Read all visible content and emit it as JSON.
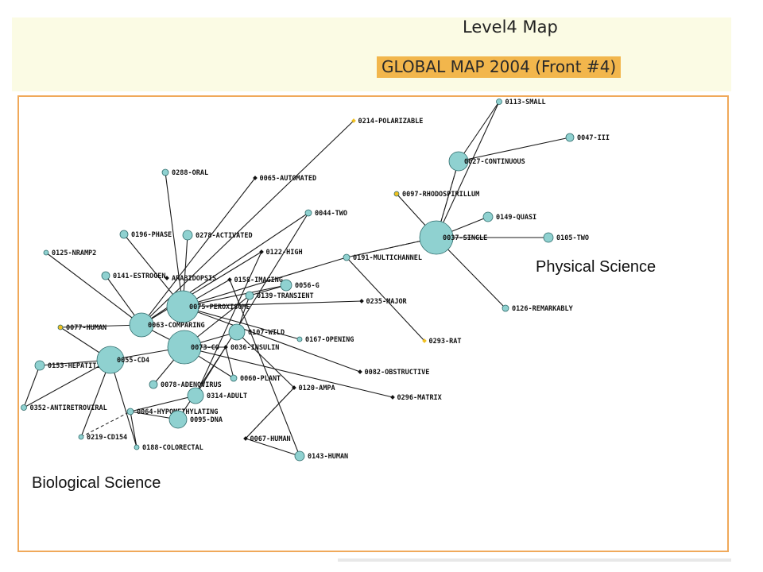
{
  "header": {
    "map_level": "Level4 Map",
    "map_title": "GLOBAL MAP 2004 (Front #4)"
  },
  "regions": {
    "physical": "Physical Science",
    "biological": "Biological Science"
  },
  "colors": {
    "node_fill": "#8fd1d0",
    "node_stroke": "#2f6b6b",
    "highlight_node": "#f0c020",
    "frame": "#f0a95a",
    "title_bg": "#f2b64c",
    "banner_bg": "#fbfbe4"
  },
  "nodes": [
    {
      "id": "n0113",
      "label": "0113-SMALL"
    },
    {
      "id": "n0047",
      "label": "0047-III"
    },
    {
      "id": "n0027",
      "label": "0027-CONTINUOUS"
    },
    {
      "id": "n0214",
      "label": "0214-POLARIZABLE"
    },
    {
      "id": "n0097",
      "label": "0097-RHODOSPIRILLUM"
    },
    {
      "id": "n0149",
      "label": "0149-QUASI"
    },
    {
      "id": "n0037",
      "label": "0037-SINGLE"
    },
    {
      "id": "n0105",
      "label": "0105-TWO"
    },
    {
      "id": "n0288",
      "label": "0288-ORAL"
    },
    {
      "id": "n0065",
      "label": "0065-AUTOMATED"
    },
    {
      "id": "n0044",
      "label": "0044-TWO"
    },
    {
      "id": "n0196",
      "label": "0196-PHASE"
    },
    {
      "id": "n0278",
      "label": "0278-ACTIVATED"
    },
    {
      "id": "n0125",
      "label": "0125-NRAMP2"
    },
    {
      "id": "n0122",
      "label": "0122-HIGH"
    },
    {
      "id": "n0191",
      "label": "0191-MULTICHANNEL"
    },
    {
      "id": "n0141",
      "label": "0141-ESTROGEN"
    },
    {
      "id": "nArab",
      "label": "ARABIDOPSIS"
    },
    {
      "id": "n0158",
      "label": "0158-IMAGING"
    },
    {
      "id": "n0056",
      "label": "0056-G"
    },
    {
      "id": "n0139",
      "label": "0139-TRANSIENT"
    },
    {
      "id": "n0075",
      "label": "0075-PEROXISOME"
    },
    {
      "id": "n0235",
      "label": "0235-MAJOR"
    },
    {
      "id": "n0126",
      "label": "0126-REMARKABLY"
    },
    {
      "id": "n0077",
      "label": "0077-HUMAN"
    },
    {
      "id": "n0063",
      "label": "0063-COMPARING"
    },
    {
      "id": "n0107",
      "label": "0107-WILD"
    },
    {
      "id": "n0167",
      "label": "0167-OPENING"
    },
    {
      "id": "n0293",
      "label": "0293-RAT"
    },
    {
      "id": "n0073",
      "label": "0073-CO"
    },
    {
      "id": "n0036",
      "label": "0036-INSULIN"
    },
    {
      "id": "n0153",
      "label": "0153-HEPATITIS"
    },
    {
      "id": "n0055",
      "label": "0055-CD4"
    },
    {
      "id": "n0082",
      "label": "0082-OBSTRUCTIVE"
    },
    {
      "id": "n0060",
      "label": "0060-PLANT"
    },
    {
      "id": "n0078",
      "label": "0078-ADENOVIRUS"
    },
    {
      "id": "n0120",
      "label": "0120-AMPA"
    },
    {
      "id": "n0296",
      "label": "0296-MATRIX"
    },
    {
      "id": "n0314",
      "label": "0314-ADULT"
    },
    {
      "id": "n0352",
      "label": "0352-ANTIRETROVIRAL"
    },
    {
      "id": "n0064",
      "label": "0064-HYPOMETHYLATING"
    },
    {
      "id": "n0095",
      "label": "0095-DNA"
    },
    {
      "id": "n0219",
      "label": "0219-CD154"
    },
    {
      "id": "n0067",
      "label": "0067-HUMAN"
    },
    {
      "id": "n0188",
      "label": "0188-COLORECTAL"
    },
    {
      "id": "n0143",
      "label": "0143-HUMAN"
    }
  ],
  "edges": [
    [
      "n0027",
      "n0113"
    ],
    [
      "n0027",
      "n0047"
    ],
    [
      "n0037",
      "n0113"
    ],
    [
      "n0037",
      "n0027"
    ],
    [
      "n0037",
      "n0097"
    ],
    [
      "n0037",
      "n0149"
    ],
    [
      "n0037",
      "n0105"
    ],
    [
      "n0037",
      "n0126"
    ],
    [
      "n0037",
      "n0191"
    ],
    [
      "n0191",
      "n0075"
    ],
    [
      "n0191",
      "n0293"
    ],
    [
      "n0063",
      "n0214"
    ],
    [
      "n0063",
      "n0065"
    ],
    [
      "n0063",
      "n0044"
    ],
    [
      "n0063",
      "n0122"
    ],
    [
      "n0063",
      "n0077"
    ],
    [
      "n0063",
      "n0125"
    ],
    [
      "n0063",
      "n0141"
    ],
    [
      "n0063",
      "n0073"
    ],
    [
      "n0075",
      "n0288"
    ],
    [
      "n0075",
      "n0196"
    ],
    [
      "n0075",
      "n0278"
    ],
    [
      "n0075",
      "n0158"
    ],
    [
      "n0075",
      "n0235"
    ],
    [
      "n0075",
      "n0056"
    ],
    [
      "n0075",
      "n0167"
    ],
    [
      "n0075",
      "n0082"
    ],
    [
      "n0073",
      "n0055"
    ],
    [
      "n0073",
      "n0036"
    ],
    [
      "n0073",
      "n0060"
    ],
    [
      "n0073",
      "n0078"
    ],
    [
      "n0073",
      "n0296"
    ],
    [
      "n0073",
      "n0107"
    ],
    [
      "n0073",
      "n0139"
    ],
    [
      "n0055",
      "n0153"
    ],
    [
      "n0055",
      "n0352"
    ],
    [
      "n0055",
      "n0188"
    ],
    [
      "n0055",
      "n0219"
    ],
    [
      "n0055",
      "n0077"
    ],
    [
      "n0153",
      "n0352"
    ],
    [
      "n0314",
      "n0064"
    ],
    [
      "n0314",
      "n0122"
    ],
    [
      "n0314",
      "n0044"
    ],
    [
      "n0095",
      "n0064"
    ],
    [
      "n0095",
      "n0036"
    ],
    [
      "n0107",
      "n0139"
    ],
    [
      "n0107",
      "n0120"
    ],
    [
      "n0056",
      "n0139"
    ],
    [
      "n0067",
      "n0120"
    ],
    [
      "n0067",
      "n0143"
    ],
    [
      "n0143",
      "n0158"
    ],
    [
      "n0064",
      "n0188"
    ],
    [
      "n0036",
      "n0060"
    ]
  ],
  "dashed_edges": [
    [
      "n0037",
      "n0027"
    ],
    [
      "n0191",
      "n0037"
    ],
    [
      "n0219",
      "n0064"
    ],
    [
      "n0067",
      "n0120"
    ]
  ],
  "highlighted_nodes": [
    "n0214",
    "n0097",
    "n0077",
    "n0293"
  ]
}
